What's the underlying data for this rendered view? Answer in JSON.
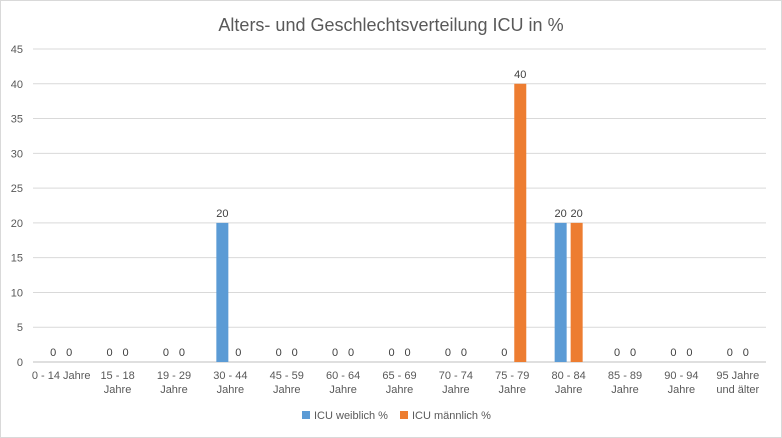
{
  "chart_data": {
    "type": "bar",
    "title": "Alters- und Geschlechtsverteilung ICU in %",
    "categories": [
      [
        "0 - 14 Jahre"
      ],
      [
        "15 - 18",
        "Jahre"
      ],
      [
        "19 - 29",
        "Jahre"
      ],
      [
        "30 - 44",
        "Jahre"
      ],
      [
        "45 - 59",
        "Jahre"
      ],
      [
        "60 - 64",
        "Jahre"
      ],
      [
        "65 - 69",
        "Jahre"
      ],
      [
        "70 - 74",
        "Jahre"
      ],
      [
        "75 - 79",
        "Jahre"
      ],
      [
        "80 - 84",
        "Jahre"
      ],
      [
        "85 - 89",
        "Jahre"
      ],
      [
        "90 - 94",
        "Jahre"
      ],
      [
        "95 Jahre",
        "und älter"
      ]
    ],
    "series": [
      {
        "name": "ICU weiblich %",
        "color": "#5b9bd5",
        "values": [
          0,
          0,
          0,
          20,
          0,
          0,
          0,
          0,
          0,
          20,
          0,
          0,
          0
        ]
      },
      {
        "name": "ICU männlich %",
        "color": "#ed7d31",
        "values": [
          0,
          0,
          0,
          0,
          0,
          0,
          0,
          0,
          40,
          20,
          0,
          0,
          0
        ]
      }
    ],
    "ylim": [
      0,
      45
    ],
    "yticks": [
      0,
      5,
      10,
      15,
      20,
      25,
      30,
      35,
      40,
      45
    ],
    "grid": true,
    "data_labels": true,
    "legend_position": "bottom"
  }
}
